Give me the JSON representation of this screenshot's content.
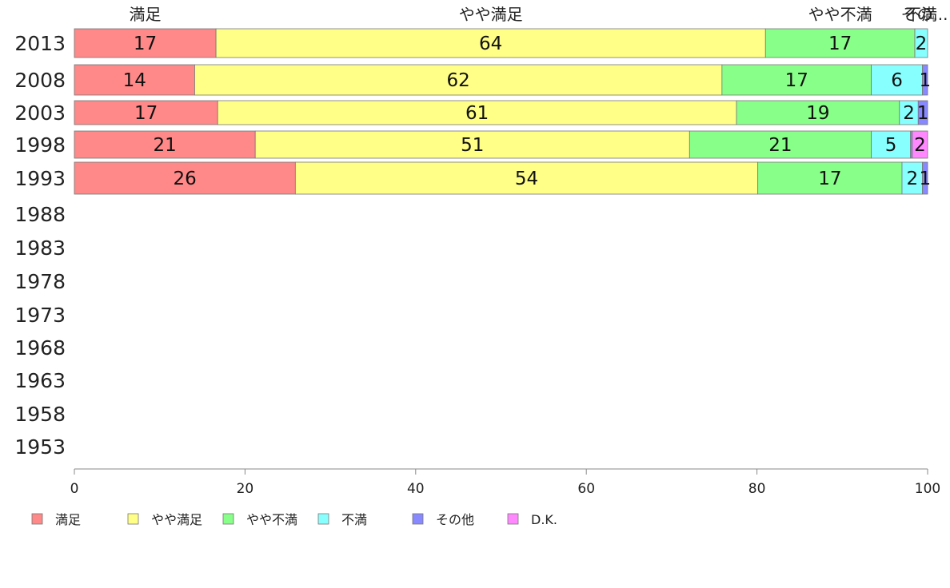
{
  "chart_data": {
    "type": "bar",
    "orientation": "horizontal",
    "stacked": true,
    "xlim": [
      0,
      100
    ],
    "xticks": [
      0,
      20,
      40,
      60,
      80,
      100
    ],
    "grid": false,
    "legend_position": "bottom-left",
    "categories": [
      "2013",
      "2008",
      "2003",
      "1998",
      "1993",
      "1988",
      "1983",
      "1978",
      "1973",
      "1968",
      "1963",
      "1958",
      "1953"
    ],
    "top_labels": [
      "満足",
      "やや満足",
      "やや不満",
      "不満",
      "その..."
    ],
    "series": [
      {
        "name": "満足",
        "color": "#ff8888",
        "values": [
          16.6,
          14.1,
          16.8,
          21.2,
          25.9,
          null,
          null,
          null,
          null,
          null,
          null,
          null,
          null
        ],
        "labels": [
          "17",
          "14",
          "17",
          "21",
          "26",
          "",
          "",
          "",
          "",
          "",
          "",
          "",
          ""
        ]
      },
      {
        "name": "やや満足",
        "color": "#ffff88",
        "values": [
          64.4,
          61.8,
          60.8,
          50.9,
          54.2,
          null,
          null,
          null,
          null,
          null,
          null,
          null,
          null
        ],
        "labels": [
          "64",
          "62",
          "61",
          "51",
          "54",
          "",
          "",
          "",
          "",
          "",
          "",
          "",
          ""
        ]
      },
      {
        "name": "やや不満",
        "color": "#88ff88",
        "values": [
          17.5,
          17.5,
          19.1,
          21.3,
          16.9,
          null,
          null,
          null,
          null,
          null,
          null,
          null,
          null
        ],
        "labels": [
          "17",
          "17",
          "19",
          "21",
          "17",
          "",
          "",
          "",
          "",
          "",
          "",
          "",
          ""
        ]
      },
      {
        "name": "不満",
        "color": "#88ffff",
        "values": [
          1.5,
          6.0,
          2.2,
          4.6,
          2.4,
          null,
          null,
          null,
          null,
          null,
          null,
          null,
          null
        ],
        "labels": [
          "2",
          "6",
          "2",
          "5",
          "2",
          "",
          "",
          "",
          "",
          "",
          "",
          "",
          ""
        ]
      },
      {
        "name": "その他",
        "color": "#8888ff",
        "values": [
          0,
          0.6,
          1.1,
          0.2,
          0.6,
          null,
          null,
          null,
          null,
          null,
          null,
          null,
          null
        ],
        "labels": [
          "",
          "1",
          "1",
          "",
          "1",
          "",
          "",
          "",
          "",
          "",
          "",
          "",
          ""
        ]
      },
      {
        "name": "D.K.",
        "color": "#ff88ff",
        "values": [
          0,
          0,
          0,
          1.8,
          0,
          null,
          null,
          null,
          null,
          null,
          null,
          null,
          null
        ],
        "labels": [
          "",
          "",
          "",
          "2",
          "",
          "",
          "",
          "",
          "",
          "",
          "",
          "",
          ""
        ]
      }
    ]
  }
}
